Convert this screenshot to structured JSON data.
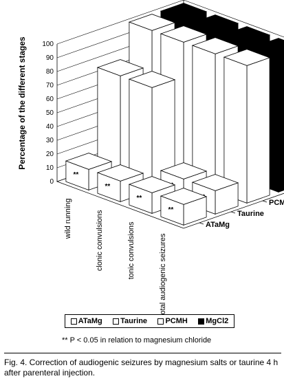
{
  "chart_data": {
    "type": "bar",
    "subtype": "3d-grouped",
    "title": "",
    "ylabel": "Percentage of the different stages",
    "ylim": [
      0,
      100
    ],
    "yticks": [
      0,
      10,
      20,
      30,
      40,
      50,
      60,
      70,
      80,
      90,
      100
    ],
    "categories": [
      "wild running",
      "clonic convulsions",
      "tonic convulsions",
      "total audiogenic seizures"
    ],
    "series": [
      {
        "name": "ATaMg",
        "color": "#ffffff",
        "values": [
          15,
          15,
          15,
          15
        ],
        "significance": [
          "**",
          "**",
          "**",
          "**"
        ]
      },
      {
        "name": "Taurine",
        "color": "#ffffff",
        "values": [
          75,
          75,
          17,
          17
        ],
        "significance": [
          "",
          "",
          "**",
          "**"
        ]
      },
      {
        "name": "PCMH",
        "color": "#ffffff",
        "values": [
          100,
          100,
          100,
          100
        ],
        "significance": [
          "",
          "",
          "",
          ""
        ]
      },
      {
        "name": "MgCl2",
        "color": "#000000",
        "values": [
          100,
          100,
          100,
          100
        ],
        "significance": [
          "",
          "",
          "",
          ""
        ]
      }
    ],
    "legend_position": "bottom",
    "grid": true
  },
  "note": "** P < 0.05 in relation to magnesium chloride",
  "caption": "Fig. 4.  Correction of audiogenic seizures by magnesium salts or taurine 4 h after parenteral injection."
}
